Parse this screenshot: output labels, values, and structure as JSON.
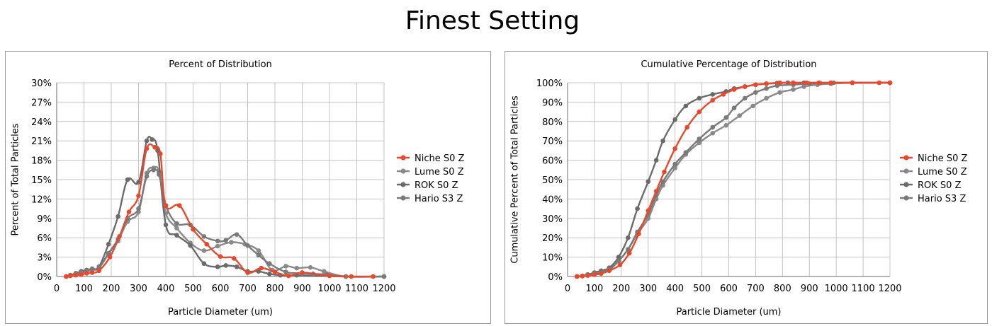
{
  "title": "Finest Setting",
  "colors": {
    "niche": "#e8492d",
    "lume": "#8a8a8a",
    "rok": "#6b6b6b",
    "hario": "#7a7a7a",
    "grid": "#c4c4c4",
    "axis": "#888888"
  },
  "chart_data": [
    {
      "type": "line",
      "title": "Percent of Distribution",
      "xlabel": "Particle Diameter (um)",
      "ylabel": "Percent of Total Particles",
      "xlim": [
        0,
        1200
      ],
      "ylim": [
        0,
        30
      ],
      "xticks": [
        0,
        100,
        200,
        300,
        400,
        500,
        600,
        700,
        800,
        900,
        1000,
        1100,
        1200
      ],
      "xtick_labels": [
        "0",
        "100",
        "200",
        "300",
        "400",
        "500",
        "600",
        "700",
        "800",
        "900",
        "1000",
        "1100",
        "1200"
      ],
      "yticks": [
        0,
        3,
        6,
        9,
        12,
        15,
        18,
        21,
        24,
        27,
        30
      ],
      "ytick_labels": [
        "0%",
        "3%",
        "6%",
        "9%",
        "12%",
        "15%",
        "18%",
        "21%",
        "24%",
        "27%",
        "30%"
      ],
      "grid": true,
      "legend_position": "right",
      "series": [
        {
          "name": "Niche S0 Z",
          "color_key": "niche",
          "x": [
            35,
            50,
            70,
            90,
            110,
            130,
            155,
            195,
            230,
            265,
            300,
            330,
            360,
            380,
            400,
            450,
            500,
            550,
            600,
            650,
            700,
            750,
            800,
            850,
            900,
            1000,
            1080,
            1160
          ],
          "y": [
            0,
            0.1,
            0.2,
            0.3,
            0.5,
            0.6,
            0.9,
            3.0,
            6.2,
            10.0,
            12.5,
            19.8,
            20.0,
            19.0,
            11.0,
            11.0,
            7.3,
            5.0,
            3.1,
            2.8,
            0.6,
            1.3,
            0.7,
            0.1,
            0.6,
            0.1,
            0,
            0
          ]
        },
        {
          "name": "Lume S0 Z",
          "color_key": "lume",
          "x": [
            35,
            50,
            70,
            90,
            110,
            130,
            155,
            190,
            225,
            260,
            300,
            330,
            355,
            375,
            400,
            440,
            490,
            540,
            590,
            640,
            690,
            740,
            790,
            840,
            880,
            930,
            980,
            1060,
            1200
          ],
          "y": [
            0,
            0.2,
            0.4,
            0.6,
            0.8,
            1.0,
            1.3,
            3.5,
            5.5,
            8.5,
            10.0,
            16.0,
            16.8,
            16.2,
            9.8,
            7.5,
            5.2,
            4.0,
            4.7,
            5.3,
            5.0,
            4.0,
            1.0,
            1.6,
            1.3,
            1.4,
            0.8,
            0,
            0
          ]
        },
        {
          "name": "ROK S0 Z",
          "color_key": "rok",
          "x": [
            35,
            50,
            70,
            90,
            110,
            130,
            155,
            190,
            225,
            260,
            300,
            330,
            350,
            370,
            400,
            440,
            490,
            540,
            590,
            620,
            660,
            700,
            740,
            780,
            820,
            880,
            1060,
            1200
          ],
          "y": [
            0,
            0.2,
            0.5,
            0.8,
            1.0,
            1.2,
            1.5,
            5.0,
            9.3,
            15.0,
            14.6,
            21.0,
            21.2,
            19.5,
            8.0,
            6.4,
            4.8,
            2.0,
            1.5,
            1.7,
            1.5,
            0.8,
            0.8,
            0.4,
            0.2,
            0.2,
            0,
            0
          ]
        },
        {
          "name": "Hario S3 Z",
          "color_key": "hario",
          "x": [
            35,
            50,
            70,
            90,
            110,
            130,
            155,
            190,
            225,
            260,
            300,
            330,
            355,
            375,
            400,
            440,
            490,
            540,
            590,
            620,
            660,
            700,
            740,
            780,
            840,
            900,
            940,
            990,
            1060,
            1200
          ],
          "y": [
            0,
            0.2,
            0.4,
            0.6,
            0.9,
            1.1,
            1.4,
            3.6,
            5.8,
            9.0,
            10.5,
            15.5,
            16.5,
            15.8,
            11.0,
            8.2,
            8.0,
            6.2,
            5.5,
            5.6,
            6.5,
            4.8,
            3.3,
            2.0,
            0.7,
            0.5,
            0.4,
            0.3,
            0,
            0
          ]
        }
      ]
    },
    {
      "type": "line",
      "title": "Cumulative Percentage of Distribution",
      "xlabel": "Particle Diameter (um)",
      "ylabel": "Cumulative Percent of Total Particles",
      "xlim": [
        0,
        1200
      ],
      "ylim": [
        0,
        100
      ],
      "xticks": [
        0,
        100,
        200,
        300,
        400,
        500,
        600,
        700,
        800,
        900,
        1000,
        1100,
        1200
      ],
      "xtick_labels": [
        "0",
        "100",
        "200",
        "300",
        "400",
        "500",
        "600",
        "700",
        "800",
        "900",
        "1000",
        "1100",
        "1200"
      ],
      "yticks": [
        0,
        10,
        20,
        30,
        40,
        50,
        60,
        70,
        80,
        90,
        100
      ],
      "ytick_labels": [
        "0%",
        "10%",
        "20%",
        "30%",
        "40%",
        "50%",
        "60%",
        "70%",
        "80%",
        "90%",
        "100%"
      ],
      "grid": true,
      "legend_position": "right",
      "series": [
        {
          "name": "Niche S0 Z",
          "color_key": "niche",
          "x": [
            35,
            55,
            75,
            100,
            125,
            155,
            195,
            230,
            265,
            300,
            330,
            360,
            400,
            445,
            490,
            540,
            580,
            620,
            660,
            700,
            740,
            790,
            840,
            890,
            935,
            980,
            1060,
            1160,
            1200
          ],
          "y": [
            0,
            0.2,
            0.5,
            1,
            1.5,
            3,
            6,
            12,
            22,
            34,
            44,
            54,
            66,
            77,
            85,
            91,
            94,
            96.5,
            98,
            99,
            99.5,
            100,
            100,
            100,
            100,
            100,
            100,
            100,
            100
          ]
        },
        {
          "name": "Lume S0 Z",
          "color_key": "lume",
          "x": [
            35,
            55,
            75,
            100,
            125,
            155,
            190,
            225,
            260,
            300,
            330,
            355,
            400,
            440,
            490,
            540,
            590,
            640,
            690,
            740,
            790,
            840,
            880,
            930,
            980,
            1060,
            1200
          ],
          "y": [
            0,
            0.3,
            0.8,
            1.5,
            2.3,
            3.5,
            8,
            14,
            22,
            30,
            40,
            47,
            56,
            63,
            69,
            74,
            78,
            83,
            88,
            92,
            95,
            96.5,
            98,
            99,
            99.5,
            100,
            100
          ]
        },
        {
          "name": "ROK S0 Z",
          "color_key": "rok",
          "x": [
            35,
            55,
            75,
            100,
            125,
            155,
            190,
            225,
            260,
            300,
            330,
            355,
            400,
            440,
            490,
            540,
            590,
            620,
            660,
            700,
            740,
            780,
            820,
            880,
            1060,
            1200
          ],
          "y": [
            0,
            0.3,
            1,
            2,
            3,
            4.5,
            10,
            20,
            35,
            49,
            60,
            70,
            81,
            88,
            92,
            94,
            95.5,
            97,
            98,
            99,
            99.5,
            99.8,
            100,
            100,
            100,
            100
          ]
        },
        {
          "name": "Hario S3 Z",
          "color_key": "hario",
          "x": [
            35,
            55,
            75,
            100,
            125,
            155,
            190,
            225,
            260,
            300,
            330,
            355,
            400,
            440,
            490,
            540,
            590,
            620,
            660,
            700,
            740,
            780,
            840,
            900,
            940,
            990,
            1060,
            1200
          ],
          "y": [
            0,
            0.3,
            0.8,
            1.5,
            2.3,
            3.5,
            8,
            14,
            23,
            32,
            42,
            49,
            58,
            64,
            71,
            77,
            82,
            87,
            92,
            95,
            97,
            98.5,
            99,
            99.5,
            99.8,
            100,
            100,
            100
          ]
        }
      ]
    }
  ]
}
